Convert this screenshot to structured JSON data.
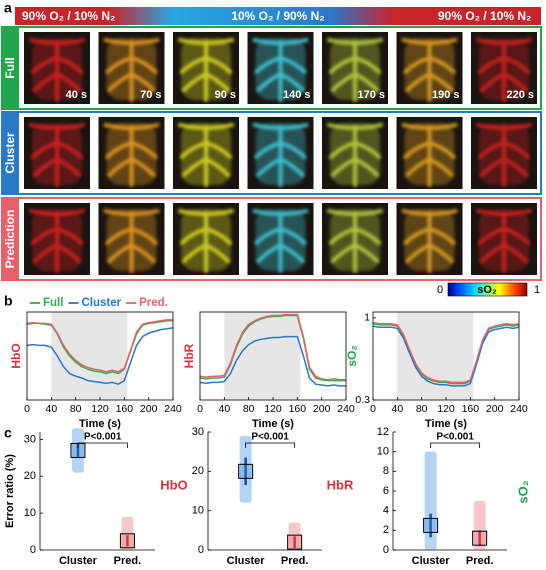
{
  "panel_a": {
    "label": "a",
    "gas_labels": [
      "90% O₂ / 10% N₂",
      "10% O₂ / 90% N₂",
      "90% O₂ / 10% N₂"
    ],
    "rows": [
      "Full",
      "Cluster",
      "Prediction"
    ],
    "times": [
      "40 s",
      "70 s",
      "90 s",
      "140 s",
      "170 s",
      "190 s",
      "220 s"
    ],
    "colorbar": {
      "ticks": [
        "0",
        "1"
      ],
      "label": "sO₂"
    }
  },
  "panel_b_label": "b",
  "panel_c_label": "c",
  "chart_data": [
    {
      "type": "line",
      "ylabel": "HbO",
      "ylabel_color": "#e0303a",
      "xlabel": "Time (s)",
      "x": [
        0,
        10,
        20,
        30,
        40,
        50,
        60,
        70,
        80,
        90,
        100,
        110,
        120,
        130,
        140,
        150,
        160,
        170,
        180,
        190,
        200,
        210,
        220,
        230,
        240
      ],
      "xlim": [
        0,
        240
      ],
      "xticks": [
        0,
        40,
        80,
        120,
        160,
        200,
        240
      ],
      "ylim": [
        0,
        1
      ],
      "shade": [
        40,
        165
      ],
      "series": [
        {
          "name": "Full",
          "color": "#2fb24a",
          "values": [
            0.86,
            0.87,
            0.87,
            0.86,
            0.85,
            0.75,
            0.6,
            0.5,
            0.43,
            0.38,
            0.35,
            0.33,
            0.32,
            0.3,
            0.32,
            0.3,
            0.35,
            0.55,
            0.75,
            0.85,
            0.87,
            0.88,
            0.89,
            0.9,
            0.9
          ]
        },
        {
          "name": "Cluster",
          "color": "#2a78c8",
          "values": [
            0.62,
            0.63,
            0.62,
            0.62,
            0.6,
            0.5,
            0.38,
            0.3,
            0.27,
            0.25,
            0.22,
            0.21,
            0.2,
            0.19,
            0.2,
            0.18,
            0.22,
            0.42,
            0.62,
            0.72,
            0.76,
            0.78,
            0.8,
            0.81,
            0.82
          ]
        },
        {
          "name": "Pred.",
          "color": "#e8606a",
          "values": [
            0.87,
            0.88,
            0.87,
            0.87,
            0.86,
            0.76,
            0.62,
            0.52,
            0.45,
            0.4,
            0.37,
            0.35,
            0.34,
            0.32,
            0.34,
            0.32,
            0.36,
            0.56,
            0.77,
            0.86,
            0.88,
            0.89,
            0.9,
            0.91,
            0.91
          ]
        }
      ]
    },
    {
      "type": "line",
      "ylabel": "HbR",
      "ylabel_color": "#e0303a",
      "xlabel": "Time (s)",
      "x": [
        0,
        10,
        20,
        30,
        40,
        50,
        60,
        70,
        80,
        90,
        100,
        110,
        120,
        130,
        140,
        150,
        160,
        170,
        180,
        190,
        200,
        210,
        220,
        230,
        240
      ],
      "xlim": [
        0,
        240
      ],
      "xticks": [
        0,
        40,
        80,
        120,
        160,
        200,
        240
      ],
      "ylim": [
        0,
        1
      ],
      "shade": [
        40,
        165
      ],
      "series": [
        {
          "color": "#2fb24a",
          "values": [
            0.25,
            0.24,
            0.25,
            0.25,
            0.26,
            0.4,
            0.6,
            0.75,
            0.84,
            0.89,
            0.92,
            0.94,
            0.95,
            0.95,
            0.96,
            0.96,
            0.96,
            0.7,
            0.35,
            0.25,
            0.23,
            0.22,
            0.22,
            0.22,
            0.22
          ]
        },
        {
          "color": "#2a78c8",
          "values": [
            0.2,
            0.19,
            0.2,
            0.2,
            0.21,
            0.3,
            0.45,
            0.56,
            0.63,
            0.67,
            0.69,
            0.7,
            0.71,
            0.71,
            0.72,
            0.72,
            0.72,
            0.5,
            0.25,
            0.18,
            0.17,
            0.16,
            0.17,
            0.16,
            0.16
          ]
        },
        {
          "color": "#e8606a",
          "values": [
            0.27,
            0.26,
            0.27,
            0.27,
            0.28,
            0.42,
            0.62,
            0.77,
            0.86,
            0.9,
            0.93,
            0.95,
            0.96,
            0.96,
            0.97,
            0.97,
            0.97,
            0.72,
            0.37,
            0.27,
            0.24,
            0.23,
            0.24,
            0.23,
            0.23
          ]
        }
      ]
    },
    {
      "type": "line",
      "ylabel": "sO₂",
      "ylabel_color": "#1aa84a",
      "xlabel": "Time (s)",
      "x": [
        0,
        10,
        20,
        30,
        40,
        50,
        60,
        70,
        80,
        90,
        100,
        110,
        120,
        130,
        140,
        150,
        160,
        170,
        180,
        190,
        200,
        210,
        220,
        230,
        240
      ],
      "xlim": [
        0,
        240
      ],
      "xticks": [
        0,
        40,
        80,
        120,
        160,
        200,
        240
      ],
      "ylim": [
        0.3,
        1.05
      ],
      "yticks": [
        0.3,
        1
      ],
      "shade": [
        40,
        165
      ],
      "series": [
        {
          "color": "#2fb24a",
          "values": [
            0.95,
            0.94,
            0.94,
            0.94,
            0.93,
            0.85,
            0.72,
            0.6,
            0.52,
            0.48,
            0.46,
            0.45,
            0.45,
            0.44,
            0.44,
            0.44,
            0.46,
            0.62,
            0.8,
            0.9,
            0.92,
            0.93,
            0.94,
            0.93,
            0.94
          ]
        },
        {
          "color": "#2a78c8",
          "values": [
            0.93,
            0.92,
            0.92,
            0.92,
            0.91,
            0.83,
            0.7,
            0.58,
            0.5,
            0.46,
            0.44,
            0.43,
            0.43,
            0.42,
            0.42,
            0.42,
            0.44,
            0.6,
            0.78,
            0.88,
            0.9,
            0.91,
            0.92,
            0.91,
            0.92
          ]
        },
        {
          "color": "#e8606a",
          "values": [
            0.96,
            0.95,
            0.95,
            0.95,
            0.94,
            0.86,
            0.73,
            0.61,
            0.53,
            0.49,
            0.47,
            0.46,
            0.46,
            0.45,
            0.45,
            0.45,
            0.47,
            0.63,
            0.81,
            0.91,
            0.93,
            0.94,
            0.95,
            0.94,
            0.95
          ]
        }
      ]
    },
    {
      "type": "errorbox",
      "ylabel": "Error ratio (%)",
      "label": "HbO",
      "label_color": "#e0303a",
      "annotation": "P<0.001",
      "categories": [
        "Cluster",
        "Pred."
      ],
      "colors": [
        "#2a84d8",
        "#e8606a"
      ],
      "values": [
        27,
        2.5
      ],
      "errors": [
        2,
        1.5
      ],
      "ranges": [
        [
          21,
          33
        ],
        [
          0,
          9
        ]
      ],
      "ylim": [
        0,
        32
      ],
      "yticks": [
        0,
        10,
        20,
        30
      ]
    },
    {
      "type": "errorbox",
      "label": "HbR",
      "label_color": "#e0303a",
      "annotation": "P<0.001",
      "categories": [
        "Cluster",
        "Pred."
      ],
      "colors": [
        "#2a84d8",
        "#e8606a"
      ],
      "values": [
        20,
        2
      ],
      "errors": [
        3.5,
        1.5
      ],
      "ranges": [
        [
          12,
          29
        ],
        [
          0,
          7
        ]
      ],
      "ylim": [
        0,
        30
      ],
      "yticks": [
        0,
        10,
        20,
        30
      ]
    },
    {
      "type": "errorbox",
      "label": "sO₂",
      "label_color": "#1aa84a",
      "annotation": "P<0.001",
      "categories": [
        "Cluster",
        "Pred."
      ],
      "colors": [
        "#2a84d8",
        "#e8606a"
      ],
      "values": [
        2.5,
        1.2
      ],
      "errors": [
        1.2,
        0.8
      ],
      "ranges": [
        [
          0,
          10
        ],
        [
          0,
          5
        ]
      ],
      "ylim": [
        0,
        12
      ],
      "yticks": [
        0,
        2,
        4,
        6,
        8,
        10,
        12
      ]
    }
  ]
}
